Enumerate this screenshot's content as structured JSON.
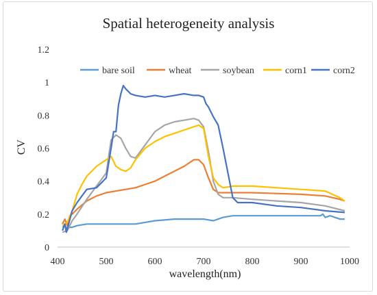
{
  "chart_data": {
    "type": "line",
    "title": "Spatial heterogeneity analysis",
    "xlabel": "wavelength(nm)",
    "ylabel": "CV",
    "xlim": [
      400,
      1000
    ],
    "ylim": [
      0,
      1.2
    ],
    "xticks": [
      "400",
      "500",
      "600",
      "700",
      "800",
      "900",
      "1000"
    ],
    "yticks": [
      "0",
      "0.2",
      "0.4",
      "0.6",
      "0.8",
      "1",
      "1.2"
    ],
    "xtick_values": [
      400,
      500,
      600,
      700,
      800,
      900,
      1000
    ],
    "ytick_values": [
      0,
      0.2,
      0.4,
      0.6,
      0.8,
      1.0,
      1.2
    ],
    "grid": false,
    "legend_position": "top",
    "series": [
      {
        "name": "bare soil",
        "color": "#5b9bd5",
        "x": [
          410,
          415,
          420,
          425,
          430,
          440,
          460,
          500,
          520,
          560,
          600,
          640,
          680,
          700,
          720,
          730,
          740,
          760,
          800,
          900,
          940,
          945,
          950,
          960,
          980,
          990
        ],
        "y": [
          0.12,
          0.13,
          0.11,
          0.12,
          0.12,
          0.13,
          0.14,
          0.14,
          0.14,
          0.14,
          0.16,
          0.17,
          0.17,
          0.17,
          0.16,
          0.17,
          0.18,
          0.19,
          0.19,
          0.19,
          0.19,
          0.2,
          0.18,
          0.19,
          0.17,
          0.17
        ]
      },
      {
        "name": "wheat",
        "color": "#ed7d31",
        "x": [
          410,
          415,
          420,
          425,
          430,
          440,
          460,
          480,
          500,
          520,
          540,
          560,
          580,
          600,
          620,
          640,
          660,
          680,
          690,
          700,
          710,
          720,
          730,
          740,
          760,
          800,
          900,
          950,
          980,
          990
        ],
        "y": [
          0.14,
          0.17,
          0.13,
          0.19,
          0.2,
          0.23,
          0.28,
          0.31,
          0.33,
          0.34,
          0.35,
          0.36,
          0.38,
          0.4,
          0.43,
          0.46,
          0.49,
          0.53,
          0.53,
          0.5,
          0.42,
          0.35,
          0.33,
          0.33,
          0.33,
          0.33,
          0.32,
          0.31,
          0.29,
          0.28
        ]
      },
      {
        "name": "soybean",
        "color": "#a5a5a5",
        "x": [
          410,
          420,
          425,
          430,
          440,
          460,
          480,
          500,
          510,
          520,
          530,
          540,
          550,
          560,
          570,
          580,
          600,
          620,
          640,
          660,
          680,
          690,
          700,
          710,
          720,
          730,
          740,
          760,
          800,
          850,
          900,
          950,
          990
        ],
        "y": [
          0.09,
          0.1,
          0.13,
          0.16,
          0.2,
          0.29,
          0.37,
          0.45,
          0.65,
          0.68,
          0.66,
          0.6,
          0.55,
          0.54,
          0.58,
          0.62,
          0.7,
          0.74,
          0.76,
          0.77,
          0.78,
          0.77,
          0.73,
          0.58,
          0.4,
          0.32,
          0.3,
          0.3,
          0.29,
          0.28,
          0.27,
          0.25,
          0.22
        ]
      },
      {
        "name": "corn1",
        "color": "#ffc000",
        "x": [
          410,
          420,
          430,
          440,
          450,
          460,
          480,
          500,
          510,
          520,
          530,
          540,
          550,
          560,
          580,
          600,
          620,
          640,
          660,
          680,
          690,
          700,
          710,
          720,
          730,
          740,
          760,
          800,
          850,
          900,
          950,
          980,
          990
        ],
        "y": [
          0.13,
          0.15,
          0.22,
          0.32,
          0.38,
          0.43,
          0.49,
          0.53,
          0.55,
          0.49,
          0.47,
          0.46,
          0.48,
          0.53,
          0.6,
          0.64,
          0.67,
          0.69,
          0.71,
          0.73,
          0.74,
          0.72,
          0.55,
          0.42,
          0.38,
          0.36,
          0.37,
          0.37,
          0.36,
          0.35,
          0.34,
          0.3,
          0.28
        ]
      },
      {
        "name": "corn2",
        "color": "#4472c4",
        "x": [
          410,
          415,
          418,
          420,
          430,
          440,
          450,
          460,
          480,
          500,
          510,
          515,
          520,
          525,
          530,
          535,
          540,
          550,
          560,
          580,
          600,
          620,
          640,
          660,
          680,
          690,
          700,
          705,
          710,
          720,
          730,
          740,
          760,
          770,
          800,
          850,
          900,
          950,
          990
        ],
        "y": [
          0.1,
          0.14,
          0.09,
          0.11,
          0.22,
          0.27,
          0.31,
          0.35,
          0.36,
          0.42,
          0.6,
          0.7,
          0.7,
          0.86,
          0.93,
          0.98,
          0.96,
          0.93,
          0.92,
          0.91,
          0.92,
          0.91,
          0.92,
          0.93,
          0.92,
          0.92,
          0.91,
          0.87,
          0.85,
          0.79,
          0.74,
          0.6,
          0.3,
          0.27,
          0.27,
          0.25,
          0.24,
          0.22,
          0.21
        ]
      }
    ]
  }
}
